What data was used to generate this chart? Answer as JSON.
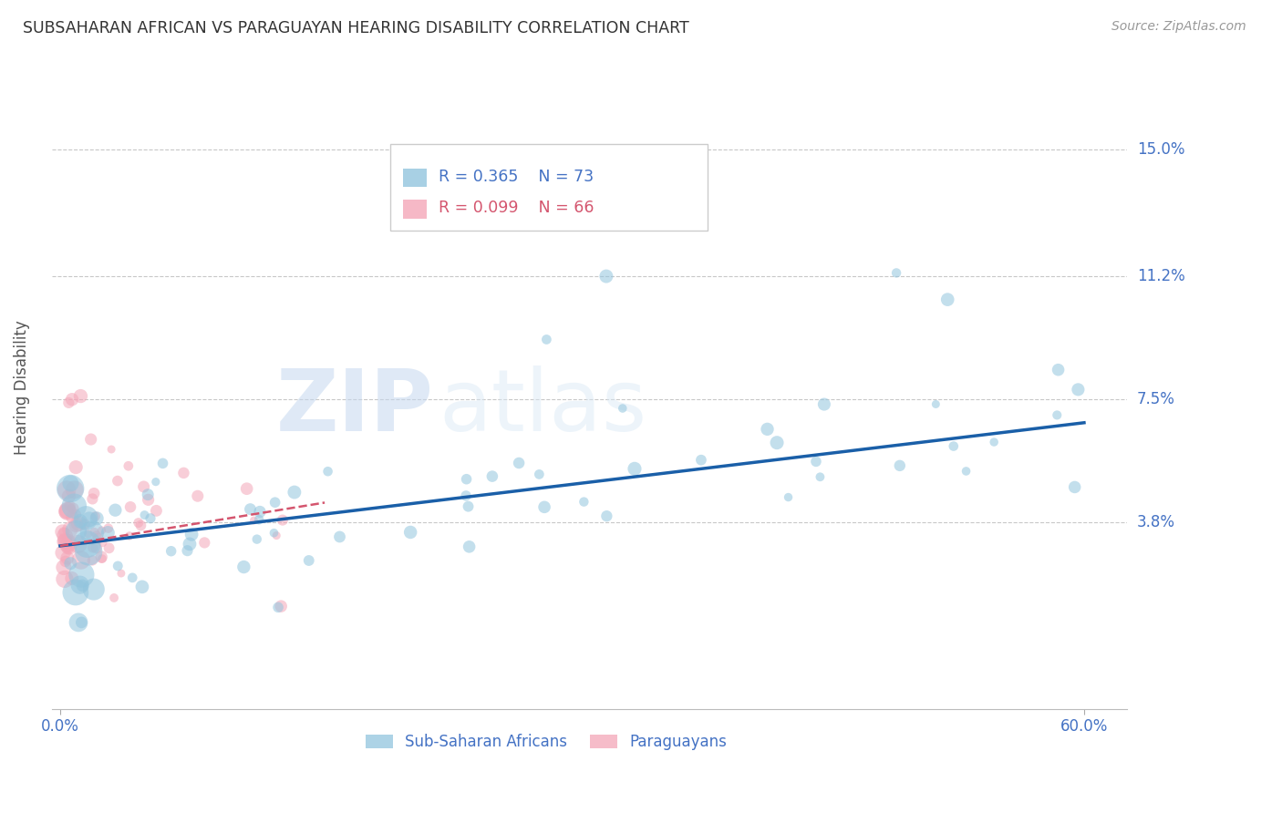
{
  "title": "SUBSAHARAN AFRICAN VS PARAGUAYAN HEARING DISABILITY CORRELATION CHART",
  "source": "Source: ZipAtlas.com",
  "ylabel": "Hearing Disability",
  "ytick_labels": [
    "15.0%",
    "11.2%",
    "7.5%",
    "3.8%"
  ],
  "ytick_values": [
    0.15,
    0.112,
    0.075,
    0.038
  ],
  "xlim": [
    -0.005,
    0.625
  ],
  "ylim": [
    -0.018,
    0.175
  ],
  "xtick_positions": [
    0.0,
    0.6
  ],
  "xtick_labels": [
    "0.0%",
    "60.0%"
  ],
  "legend_blue_r": "R = 0.365",
  "legend_blue_n": "N = 73",
  "legend_pink_r": "R = 0.099",
  "legend_pink_n": "N = 66",
  "legend_label_blue": "Sub-Saharan Africans",
  "legend_label_pink": "Paraguayans",
  "color_blue": "#92c5de",
  "color_pink": "#f4a6b8",
  "line_blue": "#1a5fa8",
  "line_pink": "#d4556e",
  "watermark_text": "ZIP",
  "watermark_text2": "atlas",
  "blue_line_x0": 0.0,
  "blue_line_x1": 0.6,
  "blue_line_y0": 0.031,
  "blue_line_y1": 0.068,
  "pink_line_x0": 0.0,
  "pink_line_x1": 0.155,
  "pink_line_y0": 0.031,
  "pink_line_y1": 0.044
}
